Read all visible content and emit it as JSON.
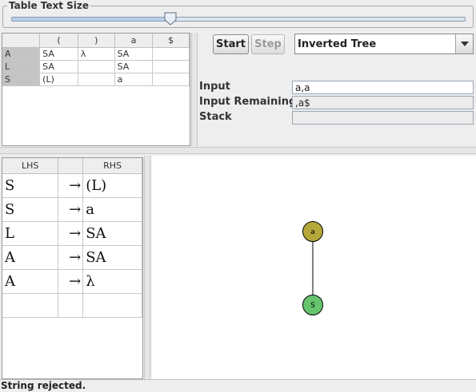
{
  "size_panel": {
    "title": "Table Text Size",
    "slider_value_fraction": 0.35
  },
  "parse_table": {
    "columns": [
      "",
      "(",
      ")",
      "a",
      "$"
    ],
    "rows": [
      {
        "head": "A",
        "cells": [
          "SA",
          "λ",
          "SA",
          ""
        ]
      },
      {
        "head": "L",
        "cells": [
          "SA",
          "",
          "SA",
          ""
        ]
      },
      {
        "head": "S",
        "cells": [
          "(L)",
          "",
          "a",
          ""
        ]
      }
    ]
  },
  "controls": {
    "start_label": "Start",
    "step_label": "Step",
    "view_select": "Inverted Tree"
  },
  "fields": {
    "input_label": "Input",
    "input_value": "a,a",
    "remaining_label": "Input Remaining",
    "remaining_value": ",a$",
    "stack_label": "Stack",
    "stack_value": ""
  },
  "grammar": {
    "headers": [
      "LHS",
      "",
      "RHS"
    ],
    "arrow": "→",
    "rows": [
      {
        "lhs": "S",
        "rhs": "(L)"
      },
      {
        "lhs": "S",
        "rhs": "a"
      },
      {
        "lhs": "L",
        "rhs": "SA"
      },
      {
        "lhs": "A",
        "rhs": "SA"
      },
      {
        "lhs": "A",
        "rhs": "λ"
      },
      {
        "lhs": "",
        "rhs": ""
      }
    ]
  },
  "tree": {
    "nodes": [
      {
        "id": "top",
        "label": "a",
        "color": "#b5a83a"
      },
      {
        "id": "bottom",
        "label": "S",
        "color": "#66c46e"
      }
    ]
  },
  "status": "String rejected."
}
